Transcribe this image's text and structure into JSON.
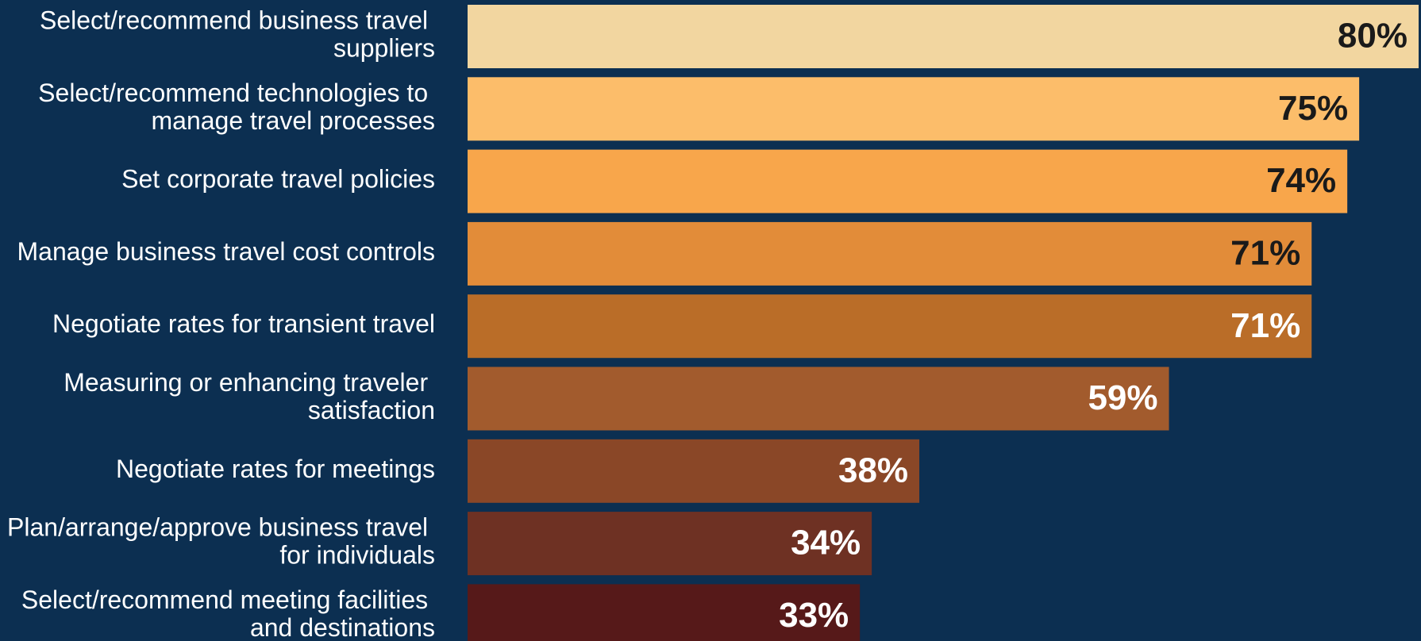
{
  "chart_data": {
    "type": "hbar",
    "categories": [
      "Select/recommend business travel suppliers",
      "Select/recommend technologies to manage travel processes",
      "Set corporate travel policies",
      "Manage business travel cost controls",
      "Negotiate rates for transient travel",
      "Measuring or enhancing traveler satisfaction",
      "Negotiate rates for meetings",
      "Plan/arrange/approve business travel for individuals",
      "Select/recommend meeting facilities and destinations"
    ],
    "values": [
      80,
      75,
      74,
      71,
      71,
      59,
      38,
      34,
      33
    ],
    "value_labels": [
      "80%",
      "75%",
      "74%",
      "71%",
      "71%",
      "59%",
      "38%",
      "34%",
      "33%"
    ],
    "colors": [
      "#f2d6a0",
      "#fcbd6a",
      "#f8a64b",
      "#e28c39",
      "#ba6d28",
      "#a25b2d",
      "#8a4727",
      "#6e3123",
      "#561919"
    ]
  }
}
